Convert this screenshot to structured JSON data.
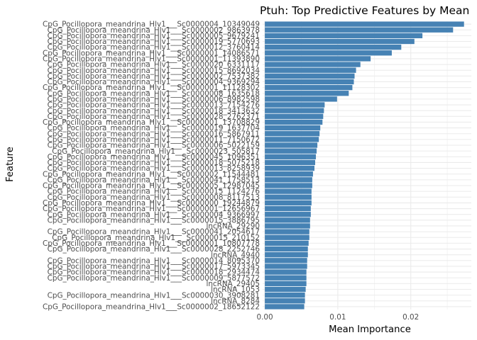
{
  "chart_data": {
    "type": "bar",
    "orientation": "horizontal",
    "title": "Ptuh: Top Predictive Features by Mean",
    "xlabel": "Mean Importance",
    "ylabel": "Feature",
    "xlim": [
      -0.0003,
      0.0283
    ],
    "xticks": [
      {
        "value": 0.0,
        "label": "0.00"
      },
      {
        "value": 0.01,
        "label": "0.01"
      },
      {
        "value": 0.02,
        "label": "0.02"
      }
    ],
    "grid": true,
    "bar_color": "#4682b4",
    "categories": [
      "CpG_Pocillopora_meandrina_Hlv1___Sc0000004_10349049",
      "CpG_Pocillopora_meandrina_Hlv1___Sc0000002_9863978",
      "CpG_Pocillopora_meandrina_Hlv1___Sc0000005_9679241",
      "CpG_Pocillopora_meandrina_Hlv1___Sc0000019_5770693",
      "CpG_Pocillopora_meandrina_Hlv1___Sc0000012_3760414",
      "CpG_Pocillopora_meandrina_Hlv1___Sc0000001_14086571",
      "CpG_Pocillopora_meandrina_Hlv1___Sc0000001_11393890",
      "CpG_Pocillopora_meandrina_Hlv1___Sc0000020_6331117",
      "CpG_Pocillopora_meandrina_Hlv1___Sc0000015_8692034",
      "CpG_Pocillopora_meandrina_Hlv1___Sc0000002_7537382",
      "CpG_Pocillopora_meandrina_Hlv1___Sc0000004_9369294",
      "CpG_Pocillopora_meandrina_Hlv1___Sc0000001_11128302",
      "CpG_Pocillopora_meandrina_Hlv1___Sc0000008_1635618",
      "CpG_Pocillopora_meandrina_Hlv1___Sc0000006_8982598",
      "CpG_Pocillopora_meandrina_Hlv1___Sc0000013_7154276",
      "CpG_Pocillopora_meandrina_Hlv1___Sc0000018_3413632",
      "CpG_Pocillopora_meandrina_Hlv1___Sc0000028_2762371",
      "CpG_Pocillopora_meandrina_Hlv1___Sc0000001_13708829",
      "CpG_Pocillopora_meandrina_Hlv1___Sc0000019_1637704",
      "CpG_Pocillopora_meandrina_Hlv1___Sc0000016_5867911",
      "CpG_Pocillopora_meandrina_Hlv1___Sc0000011_7150672",
      "CpG_Pocillopora_meandrina_Hlv1___Sc0000006_5022159",
      "CpG_Pocillopora_meandrina_Hlv1___Sc0000023_505817",
      "CpG_Pocillopora_meandrina_Hlv1___Sc0000045_1096351",
      "CpG_Pocillopora_meandrina_Hlv1___Sc0000018_5075218",
      "CpG_Pocillopora_meandrina_Hlv1___Sc0000013_8258939",
      "CpG_Pocillopora_meandrina_Hlv1___Sc0000002_11544481",
      "CpG_Pocillopora_meandrina_Hlv1___Sc0000041_1758513",
      "CpG_Pocillopora_meandrina_Hlv1___Sc0000005_12987045",
      "CpG_Pocillopora_meandrina_Hlv1___Sc0000015_1124276",
      "CpG_Pocillopora_meandrina_Hlv1___Sc0000008_8117513",
      "CpG_Pocillopora_meandrina_Hlv1___Sc0000000_19244879",
      "CpG_Pocillopora_meandrina_Hlv1___Sc0000001_12656967",
      "CpG_Pocillopora_meandrina_Hlv1___Sc0000004_9366997",
      "CpG_Pocillopora_meandrina_Hlv1___Sc0000015_3886795",
      "lncRNA_29290",
      "CpG_Pocillopora_meandrina_Hlv1___Sc0000041_2054617",
      "CpG_Pocillopora_meandrina_Hlv1___Sc0000015_210152",
      "CpG_Pocillopora_meandrina_Hlv1___Sc0000001_10807778",
      "CpG_Pocillopora_meandrina_Hlv1___Sc0000028_2252746",
      "lncRNA_4940",
      "CpG_Pocillopora_meandrina_Hlv1___Sc0000014_8095370",
      "CpG_Pocillopora_meandrina_Hlv1___Sc0000017_5973345",
      "CpG_Pocillopora_meandrina_Hlv1___Sc0000018_2934474",
      "CpG_Pocillopora_meandrina_Hlv1___Sc0000009_5877572",
      "lncRNA_29405",
      "lncRNA_1053",
      "CpG_Pocillopora_meandrina_Hlv1___Sc0000030_3908281",
      "lncRNA_8284",
      "CpG_Pocillopora_meandrina_Hlv1___Sc0000002_18652122"
    ],
    "values": [
      0.0273,
      0.0258,
      0.0216,
      0.0205,
      0.0187,
      0.0174,
      0.0145,
      0.0131,
      0.0125,
      0.0123,
      0.0122,
      0.012,
      0.0115,
      0.0099,
      0.0082,
      0.0081,
      0.008,
      0.0079,
      0.0076,
      0.0075,
      0.0074,
      0.0072,
      0.0071,
      0.007,
      0.0069,
      0.0068,
      0.0066,
      0.0065,
      0.0065,
      0.0064,
      0.0064,
      0.0064,
      0.0063,
      0.0063,
      0.0062,
      0.0062,
      0.0061,
      0.0061,
      0.006,
      0.0059,
      0.0059,
      0.0058,
      0.0058,
      0.0057,
      0.0057,
      0.0057,
      0.0056,
      0.0055,
      0.0055,
      0.0054
    ]
  }
}
